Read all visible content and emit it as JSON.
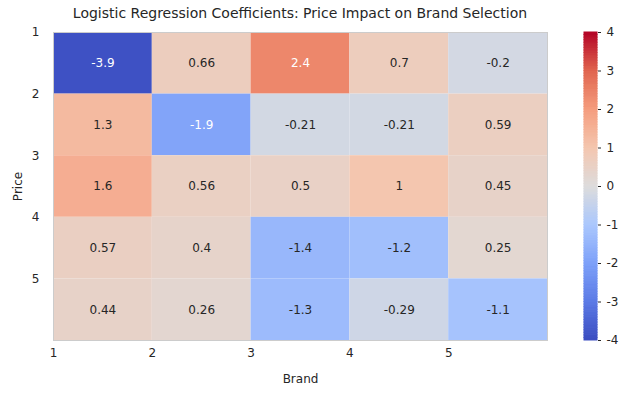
{
  "chart_data": {
    "type": "heatmap",
    "title": "Logistic Regression Coefficients: Price Impact on Brand Selection",
    "x_label": "Brand",
    "y_label": "Price",
    "x": [
      1,
      2,
      3,
      4,
      5
    ],
    "y": [
      1,
      2,
      3,
      4,
      5
    ],
    "values": [
      [
        -3.9,
        0.66,
        2.4,
        0.7,
        -0.2
      ],
      [
        1.3,
        -1.9,
        -0.21,
        -0.21,
        0.59
      ],
      [
        1.6,
        0.56,
        0.5,
        1,
        0.45
      ],
      [
        0.57,
        0.4,
        -1.4,
        -1.2,
        0.25
      ],
      [
        0.44,
        0.26,
        -1.3,
        -0.29,
        -1.1
      ]
    ],
    "xlim": [
      1,
      6
    ],
    "xticks": [
      1,
      2,
      3,
      4,
      5
    ],
    "ylim": [
      6,
      1
    ],
    "yticks": [
      1,
      2,
      3,
      4,
      5
    ],
    "data_labels": true,
    "colorbar": {
      "range": [
        -4,
        4
      ],
      "ticks": [
        -4,
        -3,
        -2,
        -1,
        0,
        1,
        2,
        3,
        4
      ]
    }
  }
}
